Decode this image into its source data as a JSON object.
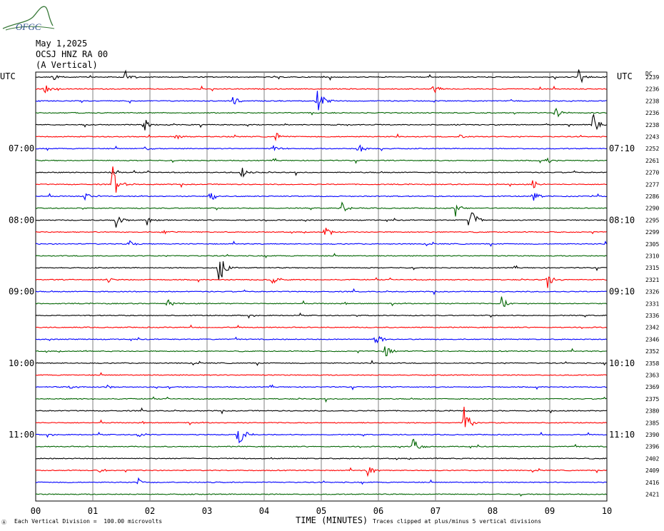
{
  "header": {
    "logo_text": "OFGC",
    "date": "May 1,2025",
    "station": "OCSJ HNZ RA 00",
    "component": "(A Vertical)"
  },
  "labels": {
    "left_utc": "UTC",
    "right_utc": "UTC",
    "right_dc": "DC",
    "xlabel": "TIME (MINUTES)",
    "footnote_left": "Each Vertical Division =  100.00 microvolts",
    "footnote_right": "Traces clipped at plus/minus 5 vertical divisions",
    "footnote_mark": "Ⓐ"
  },
  "colors": {
    "cycle": [
      "#000000",
      "#ff0000",
      "#0000ff",
      "#006400"
    ],
    "grid": "#808080"
  },
  "chart_data": {
    "type": "line",
    "title": "",
    "xlabel": "TIME (MINUTES)",
    "ylabel": "",
    "xlim": [
      0,
      10
    ],
    "x_ticks": [
      "00",
      "01",
      "02",
      "03",
      "04",
      "05",
      "06",
      "07",
      "08",
      "09",
      "10"
    ],
    "grid": true,
    "trace_count": 36,
    "trace_colors_cycle": [
      "black",
      "red",
      "blue",
      "green"
    ],
    "left_time_labels": [
      {
        "trace": 6,
        "label": "07:00"
      },
      {
        "trace": 12,
        "label": "08:00"
      },
      {
        "trace": 18,
        "label": "09:00"
      },
      {
        "trace": 24,
        "label": "10:00"
      },
      {
        "trace": 30,
        "label": "11:00"
      }
    ],
    "right_time_labels": [
      {
        "trace": 6,
        "label": "07:10"
      },
      {
        "trace": 12,
        "label": "08:10"
      },
      {
        "trace": 18,
        "label": "09:10"
      },
      {
        "trace": 24,
        "label": "10:10"
      },
      {
        "trace": 30,
        "label": "11:10"
      }
    ],
    "dc_offsets": [
      "2239",
      "2236",
      "2238",
      "2236",
      "2238",
      "2243",
      "2252",
      "2261",
      "2270",
      "2277",
      "2286",
      "2290",
      "2295",
      "2299",
      "2305",
      "2310",
      "2315",
      "2321",
      "2326",
      "2331",
      "2336",
      "2342",
      "2346",
      "2352",
      "2358",
      "2363",
      "2369",
      "2375",
      "2380",
      "2385",
      "2390",
      "2396",
      "2402",
      "2409",
      "2416",
      "2421"
    ],
    "events": [
      {
        "trace": 0,
        "minute": 0.3,
        "amp": 0.8
      },
      {
        "trace": 0,
        "minute": 1.55,
        "amp": 1.3
      },
      {
        "trace": 0,
        "minute": 9.5,
        "amp": 1.5
      },
      {
        "trace": 1,
        "minute": 0.15,
        "amp": 0.9
      },
      {
        "trace": 1,
        "minute": 6.95,
        "amp": 0.9
      },
      {
        "trace": 2,
        "minute": 3.45,
        "amp": 0.9
      },
      {
        "trace": 2,
        "minute": 4.92,
        "amp": 2.5
      },
      {
        "trace": 3,
        "minute": 9.1,
        "amp": 1.0
      },
      {
        "trace": 4,
        "minute": 1.9,
        "amp": 1.2
      },
      {
        "trace": 4,
        "minute": 9.75,
        "amp": 2.0
      },
      {
        "trace": 5,
        "minute": 2.45,
        "amp": 0.7
      },
      {
        "trace": 5,
        "minute": 4.2,
        "amp": 0.8
      },
      {
        "trace": 5,
        "minute": 7.4,
        "amp": 0.5
      },
      {
        "trace": 6,
        "minute": 1.9,
        "amp": 0.6
      },
      {
        "trace": 6,
        "minute": 4.15,
        "amp": 0.7
      },
      {
        "trace": 6,
        "minute": 5.65,
        "amp": 1.0
      },
      {
        "trace": 7,
        "minute": 8.95,
        "amp": 0.6
      },
      {
        "trace": 8,
        "minute": 1.3,
        "amp": 0.5
      },
      {
        "trace": 8,
        "minute": 3.6,
        "amp": 1.0
      },
      {
        "trace": 9,
        "minute": 1.35,
        "amp": 3.0
      },
      {
        "trace": 9,
        "minute": 8.7,
        "amp": 0.8
      },
      {
        "trace": 10,
        "minute": 0.85,
        "amp": 0.6
      },
      {
        "trace": 10,
        "minute": 3.05,
        "amp": 1.0
      },
      {
        "trace": 10,
        "minute": 8.7,
        "amp": 1.0
      },
      {
        "trace": 11,
        "minute": 5.35,
        "amp": 1.2
      },
      {
        "trace": 11,
        "minute": 7.35,
        "amp": 1.5
      },
      {
        "trace": 12,
        "minute": 1.4,
        "amp": 1.3
      },
      {
        "trace": 12,
        "minute": 1.95,
        "amp": 1.0
      },
      {
        "trace": 12,
        "minute": 7.6,
        "amp": 2.5
      },
      {
        "trace": 13,
        "minute": 2.2,
        "amp": 0.5
      },
      {
        "trace": 13,
        "minute": 5.05,
        "amp": 0.9
      },
      {
        "trace": 14,
        "minute": 1.6,
        "amp": 0.8
      },
      {
        "trace": 16,
        "minute": 3.2,
        "amp": 3.0
      },
      {
        "trace": 17,
        "minute": 1.25,
        "amp": 0.5
      },
      {
        "trace": 17,
        "minute": 4.1,
        "amp": 1.3
      },
      {
        "trace": 17,
        "minute": 8.95,
        "amp": 1.5
      },
      {
        "trace": 19,
        "minute": 2.3,
        "amp": 0.8
      },
      {
        "trace": 19,
        "minute": 8.15,
        "amp": 1.2
      },
      {
        "trace": 22,
        "minute": 5.95,
        "amp": 1.4
      },
      {
        "trace": 23,
        "minute": 6.1,
        "amp": 1.3
      },
      {
        "trace": 26,
        "minute": 0.6,
        "amp": 0.4
      },
      {
        "trace": 26,
        "minute": 1.25,
        "amp": 0.4
      },
      {
        "trace": 29,
        "minute": 7.5,
        "amp": 2.5
      },
      {
        "trace": 30,
        "minute": 1.8,
        "amp": 0.6
      },
      {
        "trace": 30,
        "minute": 3.55,
        "amp": 2.3
      },
      {
        "trace": 31,
        "minute": 6.6,
        "amp": 1.6
      },
      {
        "trace": 33,
        "minute": 1.1,
        "amp": 0.5
      },
      {
        "trace": 33,
        "minute": 5.8,
        "amp": 1.0
      },
      {
        "trace": 34,
        "minute": 1.8,
        "amp": 0.6
      }
    ]
  }
}
